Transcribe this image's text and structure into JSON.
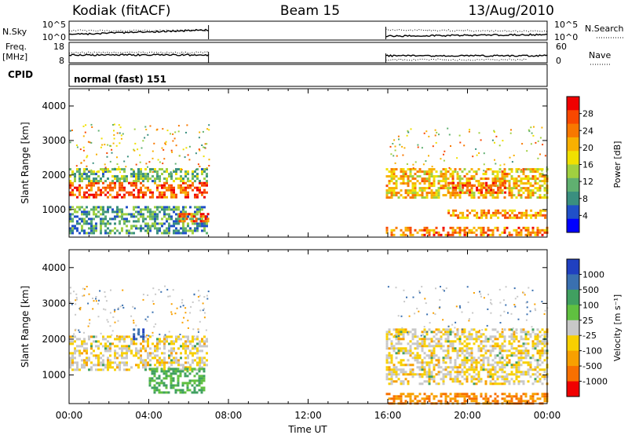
{
  "header": {
    "radar": "Kodiak (fitACF)",
    "beam": "Beam 15",
    "date": "13/Aug/2010"
  },
  "top_panels": {
    "nsky_label": "N.Sky",
    "nsky_ticks": [
      "10^5",
      "10^0"
    ],
    "nsearch_label": "N.Search",
    "nsearch_ticks": [
      "10^5",
      "10^0"
    ],
    "freq_label_1": "Freq.",
    "freq_label_2": "[MHz]",
    "freq_ticks": [
      "18",
      "8"
    ],
    "nave_label": "Nave",
    "nave_ticks": [
      "60",
      "0"
    ],
    "cpid_label": "CPID",
    "cpid_value": "normal (fast) 151"
  },
  "chart_data": [
    {
      "type": "heatmap",
      "name": "power",
      "ylabel": "Slant Range [km]",
      "xlabel": "Time UT",
      "x_ticks": [
        "00:00",
        "04:00",
        "08:00",
        "12:00",
        "16:00",
        "20:00",
        "00:00"
      ],
      "y_ticks": [
        1000,
        2000,
        3000,
        4000
      ],
      "ylim": [
        200,
        4500
      ],
      "xlim_hours": [
        0,
        24
      ],
      "colorbar": {
        "label": "Power [dB]",
        "ticks": [
          "4",
          "8",
          "12",
          "16",
          "20",
          "24",
          "28"
        ],
        "range": [
          0,
          32
        ],
        "colors": [
          "#0000ff",
          "#2050c8",
          "#3a8f7f",
          "#60b070",
          "#a0d040",
          "#f0e000",
          "#f8b000",
          "#f87800",
          "#f84800",
          "#f00000"
        ]
      },
      "data_gaps_hours": [
        [
          7.0,
          15.9
        ]
      ],
      "bands": [
        {
          "t0": 0.0,
          "t1": 7.0,
          "r0": 1300,
          "r1": 1800,
          "level": 26
        },
        {
          "t0": 0.0,
          "t1": 7.0,
          "r0": 1800,
          "r1": 2200,
          "level": 12
        },
        {
          "t0": 0.0,
          "t1": 7.0,
          "r0": 300,
          "r1": 1100,
          "level": 10
        },
        {
          "t0": 5.5,
          "t1": 7.0,
          "r0": 600,
          "r1": 900,
          "level": 26
        },
        {
          "t0": 15.9,
          "t1": 24.0,
          "r0": 1300,
          "r1": 2200,
          "level": 20
        },
        {
          "t0": 15.9,
          "t1": 24.0,
          "r0": 200,
          "r1": 500,
          "level": 24
        },
        {
          "t0": 19.0,
          "t1": 22.0,
          "r0": 1450,
          "r1": 1800,
          "level": 27
        },
        {
          "t0": 19.0,
          "t1": 24.0,
          "r0": 700,
          "r1": 1000,
          "level": 22
        }
      ]
    },
    {
      "type": "heatmap",
      "name": "velocity",
      "ylabel": "Slant Range [km]",
      "xlabel": "Time UT",
      "x_ticks": [
        "00:00",
        "04:00",
        "08:00",
        "12:00",
        "16:00",
        "20:00",
        "00:00"
      ],
      "y_ticks": [
        1000,
        2000,
        3000,
        4000
      ],
      "ylim": [
        200,
        4500
      ],
      "xlim_hours": [
        0,
        24
      ],
      "colorbar": {
        "label": "Velocity [m s⁻¹]",
        "ticks": [
          "1000",
          "500",
          "100",
          "25",
          "-25",
          "-100",
          "-500",
          "-1000"
        ],
        "colors": [
          "#2040c0",
          "#3a70b0",
          "#40a060",
          "#60c040",
          "#c8c8c8",
          "#f8d000",
          "#f8a000",
          "#f87000",
          "#f00000"
        ]
      },
      "data_gaps_hours": [
        [
          7.0,
          15.9
        ]
      ],
      "bands": [
        {
          "t0": 0.0,
          "t1": 7.0,
          "r0": 1100,
          "r1": 2100,
          "level": 0
        },
        {
          "t0": 4.0,
          "t1": 6.8,
          "r0": 500,
          "r1": 1200,
          "level": 100
        },
        {
          "t0": 3.2,
          "t1": 3.8,
          "r0": 2000,
          "r1": 2300,
          "level": 1000
        },
        {
          "t0": 15.9,
          "t1": 24.0,
          "r0": 700,
          "r1": 2300,
          "level": 0
        },
        {
          "t0": 15.9,
          "t1": 24.0,
          "r0": 200,
          "r1": 500,
          "level": -100
        }
      ]
    }
  ]
}
